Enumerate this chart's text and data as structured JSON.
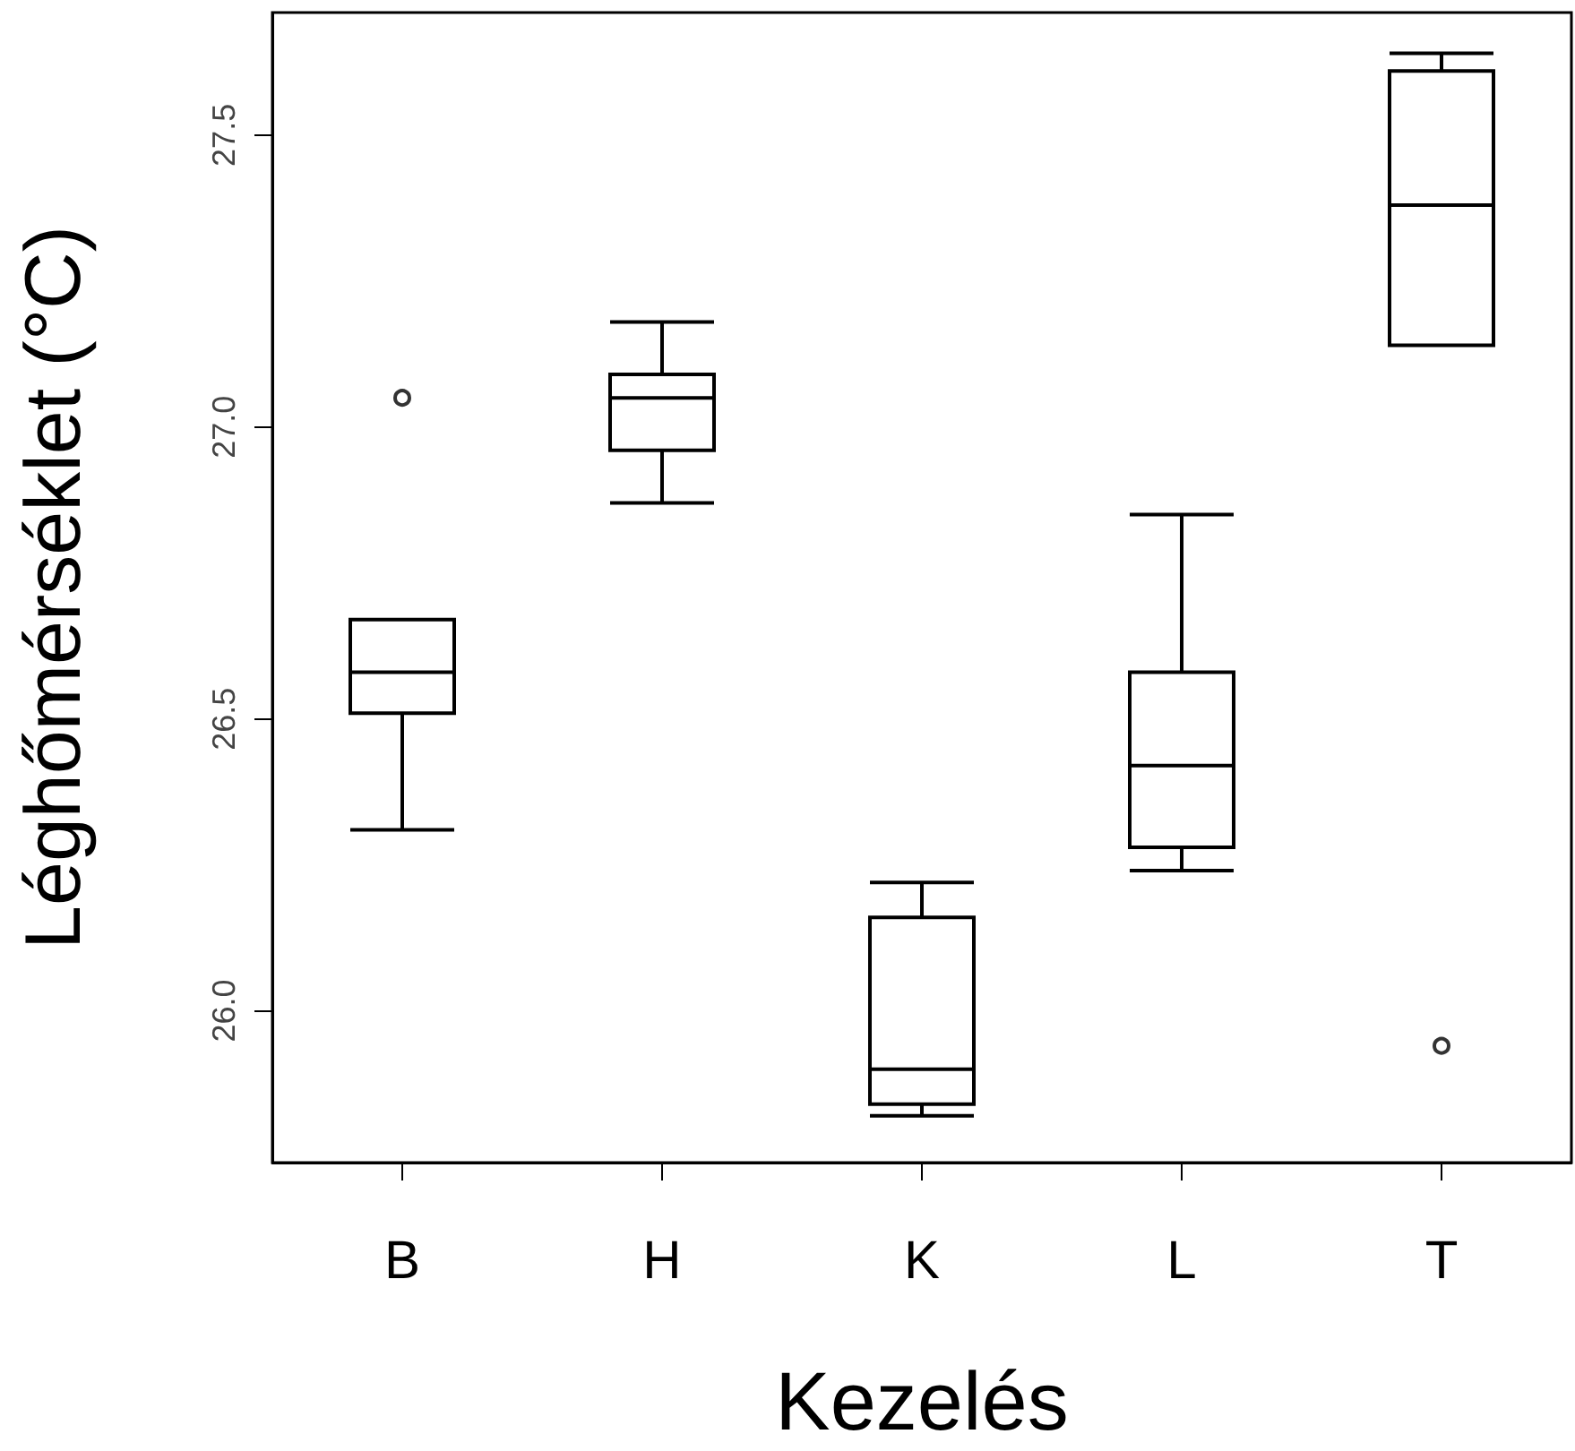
{
  "chart_data": {
    "type": "box",
    "xlabel": "Kezelés",
    "ylabel": "Léghőmérséklet (°C)",
    "categories": [
      "B",
      "H",
      "K",
      "L",
      "T"
    ],
    "boxes": [
      {
        "low": 26.31,
        "q1": 26.51,
        "median": 26.58,
        "q3": 26.67,
        "high": 26.67,
        "outliers": [
          27.05
        ]
      },
      {
        "low": 26.87,
        "q1": 26.96,
        "median": 27.05,
        "q3": 27.09,
        "high": 27.18
      },
      {
        "low": 25.82,
        "q1": 25.84,
        "median": 25.9,
        "q3": 26.16,
        "high": 26.22
      },
      {
        "low": 26.24,
        "q1": 26.28,
        "median": 26.42,
        "q3": 26.58,
        "high": 26.85
      },
      {
        "low": 27.14,
        "q1": 27.14,
        "median": 27.38,
        "q3": 27.61,
        "high": 27.64,
        "outliers": [
          25.94
        ]
      }
    ],
    "ylim": [
      25.74,
      27.71
    ],
    "yticks": [
      {
        "value": 26,
        "label": "26.0"
      },
      26.5,
      {
        "value": 27,
        "label": "27.0"
      },
      27.5
    ]
  }
}
